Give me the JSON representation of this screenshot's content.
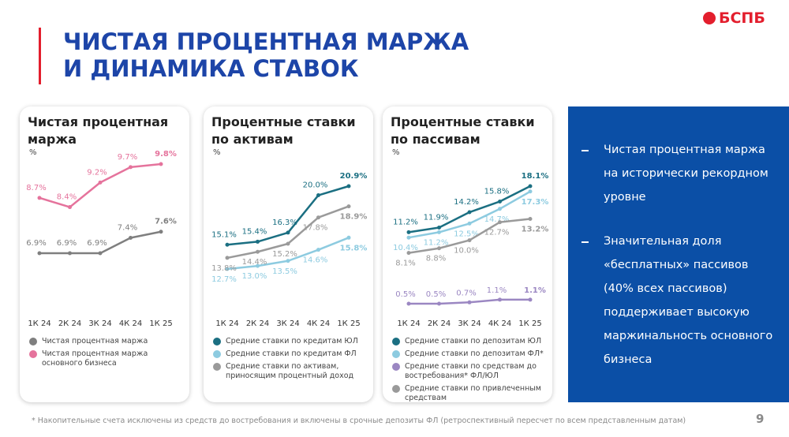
{
  "logo": "БСПБ",
  "header": {
    "title_lines": [
      "ЧИСТАЯ ПРОЦЕНТНАЯ МАРЖА",
      "И ДИНАМИКА СТАВОК"
    ]
  },
  "chart_data": [
    {
      "type": "line",
      "title": "Чистая процентная маржа",
      "unit": "%",
      "categories": [
        "1К 24",
        "2К 24",
        "3К 24",
        "4К 24",
        "1К 25"
      ],
      "series": [
        {
          "name": "Чистая процентная маржа",
          "color": "#7f7f7f",
          "values": [
            6.9,
            6.9,
            6.9,
            7.4,
            7.6
          ],
          "value_labels": [
            "6.9%",
            "6.9%",
            "6.9%",
            "7.4%",
            "7.6%"
          ]
        },
        {
          "name": "Чистая процентная маржа основного бизнеса",
          "color": "#e5739c",
          "values": [
            8.7,
            8.4,
            9.2,
            9.7,
            9.8
          ],
          "value_labels": [
            "8.7%",
            "8.4%",
            "9.2%",
            "9.7%",
            "9.8%"
          ]
        }
      ]
    },
    {
      "type": "line",
      "title": "Процентные ставки по активам",
      "unit": "%",
      "categories": [
        "1К 24",
        "2К 24",
        "3К 24",
        "4К 24",
        "1К 25"
      ],
      "series": [
        {
          "name": "Средние ставки по кредитам ЮЛ",
          "color": "#1b6f82",
          "values": [
            15.1,
            15.4,
            16.3,
            20.0,
            20.9
          ],
          "value_labels": [
            "15.1%",
            "15.4%",
            "16.3%",
            "20.0%",
            "20.9%"
          ]
        },
        {
          "name": "Средние ставки по кредитам ФЛ",
          "color": "#8dcbe0",
          "values": [
            12.7,
            13.0,
            13.5,
            14.6,
            15.8
          ],
          "value_labels": [
            "12.7%",
            "13.0%",
            "13.5%",
            "14.6%",
            "15.8%"
          ]
        },
        {
          "name": "Средние ставки по активам, приносящим процентный доход",
          "color": "#9a9a9a",
          "values": [
            13.8,
            14.4,
            15.2,
            17.8,
            18.9
          ],
          "value_labels": [
            "13.8%",
            "14.4%",
            "15.2%",
            "17.8%",
            "18.9%"
          ]
        }
      ]
    },
    {
      "type": "line",
      "title": "Процентные ставки по пассивам",
      "unit": "%",
      "categories": [
        "1К 24",
        "2К 24",
        "3К 24",
        "4К 24",
        "1К 25"
      ],
      "series": [
        {
          "name": "Средние ставки по депозитам ЮЛ",
          "color": "#1b6f82",
          "values": [
            11.2,
            11.9,
            14.2,
            15.8,
            18.1
          ],
          "value_labels": [
            "11.2%",
            "11.9%",
            "14.2%",
            "15.8%",
            "18.1%"
          ]
        },
        {
          "name": "Средние ставки по депозитам ФЛ*",
          "color": "#8dcbe0",
          "values": [
            10.4,
            11.2,
            12.5,
            14.7,
            17.3
          ],
          "value_labels": [
            "10.4%",
            "11.2%",
            "12.5%",
            "14.7%",
            "17.3%"
          ]
        },
        {
          "name": "Средние ставки по средствам до востребования* ФЛ/ЮЛ",
          "color": "#9b87c2",
          "values": [
            0.5,
            0.5,
            0.7,
            1.1,
            1.1
          ],
          "value_labels": [
            "0.5%",
            "0.5%",
            "0.7%",
            "1.1%",
            "1.1%"
          ]
        },
        {
          "name": "Средние ставки по привлеченным средствам",
          "color": "#9a9a9a",
          "values": [
            8.1,
            8.8,
            10.0,
            12.7,
            13.2
          ],
          "value_labels": [
            "8.1%",
            "8.8%",
            "10.0%",
            "12.7%",
            "13.2%"
          ]
        }
      ]
    }
  ],
  "side_panel": {
    "bullets": [
      "Чистая процентная маржа на исторически рекордном уровне",
      "Значительная доля «бесплатных» пассивов (40% всех пассивов) поддерживает высокую маржинальность основного бизнеса"
    ]
  },
  "footnote": "* Накопительные счета исключены из средств до востребования и включены в срочные депозиты ФЛ (ретроспективный пересчет по всем представленным датам)",
  "page_number": "9"
}
